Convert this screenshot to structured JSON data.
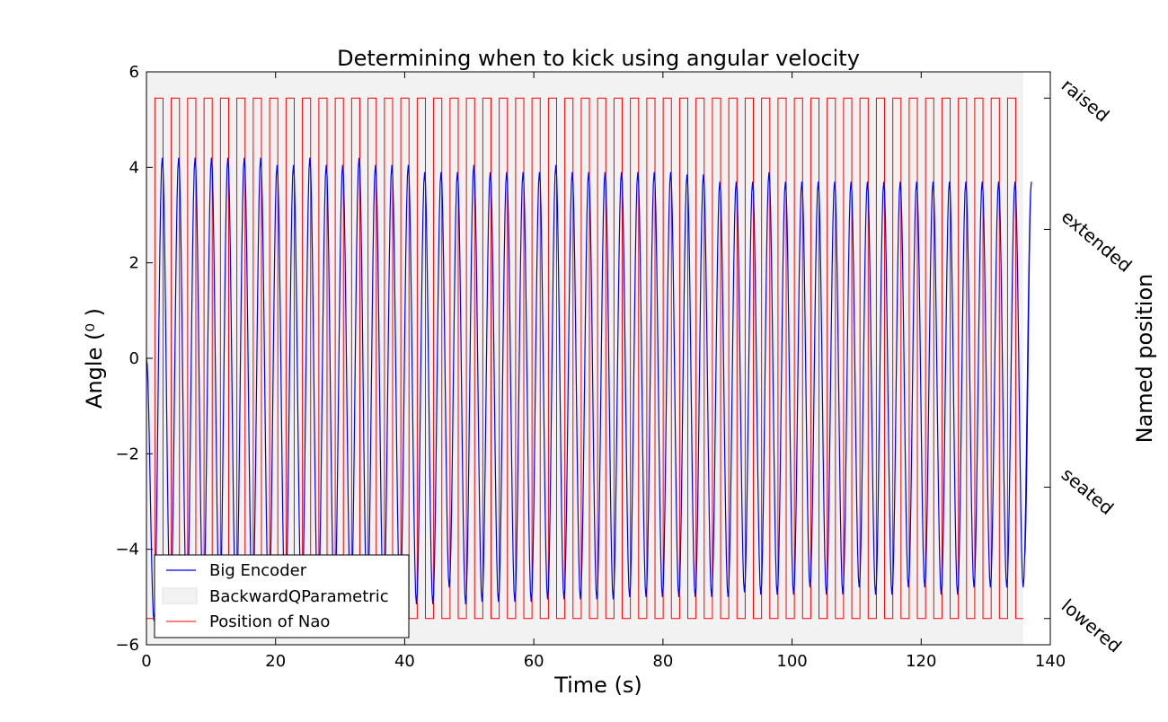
{
  "chart_data": {
    "type": "line",
    "title": "Determining when to kick using angular velocity",
    "xlabel": "Time (s)",
    "ylabel": "Angle (⁰ )",
    "ylabel_right": "Named position",
    "xlim": [
      0,
      140
    ],
    "ylim": [
      -6,
      6
    ],
    "x_ticks": [
      0,
      20,
      40,
      60,
      80,
      100,
      120,
      140
    ],
    "y_ticks": [
      -6,
      -4,
      -2,
      0,
      2,
      4,
      6
    ],
    "y_tick_labels": [
      "−6",
      "−4",
      "−2",
      "0",
      "2",
      "4",
      "6"
    ],
    "right_axis_labels": [
      {
        "label": "raised",
        "y": 5.45
      },
      {
        "label": "extended",
        "y": 2.7
      },
      {
        "label": "seated",
        "y": -2.7
      },
      {
        "label": "lowered",
        "y": -5.45
      }
    ],
    "grid": false,
    "legend_position": "lower-left",
    "shaded_region": {
      "name": "BackwardQParametric",
      "x": [
        0,
        135.8
      ],
      "color": "#f2f2f2"
    },
    "series": [
      {
        "name": "Big Encoder",
        "color": "#0000ff",
        "kind": "oscillation",
        "start": 0,
        "end": 136,
        "period": 2.54,
        "first_peak_t": 2.45,
        "peak_values": [
          4.2,
          4.2,
          4.2,
          4.2,
          4.2,
          4.2,
          4.2,
          4.05,
          4.05,
          4.2,
          4.05,
          4.05,
          4.2,
          4.05,
          4.05,
          4.05,
          3.9,
          3.9,
          3.9,
          4.05,
          3.9,
          3.9,
          3.9,
          3.9,
          4.05,
          3.9,
          3.9,
          3.9,
          3.9,
          3.9,
          3.9,
          3.9,
          3.85,
          3.85,
          3.7,
          3.7,
          3.7,
          3.9,
          3.7,
          3.7,
          3.7,
          3.7,
          3.7,
          3.7,
          3.7,
          3.7,
          3.7,
          3.7,
          3.7,
          3.7,
          3.7,
          3.7,
          3.7,
          3.7
        ],
        "trough_values": [
          -5.5,
          -5.3,
          -5.3,
          -5.3,
          -5.3,
          -5.3,
          -5.3,
          -5.3,
          -5.3,
          -5.3,
          -5.3,
          -5.3,
          -5.3,
          -5.3,
          -5.25,
          -5.15,
          -5.15,
          -5.15,
          -4.8,
          -5.15,
          -5.1,
          -5.1,
          -5.1,
          -5.1,
          -5.05,
          -5.05,
          -5.05,
          -5.05,
          -5.05,
          -5.0,
          -5.0,
          -5.0,
          -5.0,
          -5.0,
          -5.0,
          -5.0,
          -4.9,
          -4.95,
          -4.95,
          -4.95,
          -4.8,
          -4.95,
          -4.95,
          -4.8,
          -4.95,
          -4.95,
          -4.8,
          -4.8,
          -4.95,
          -4.95,
          -4.8,
          -4.8,
          -4.8,
          -4.8
        ]
      },
      {
        "name": "Position of Nao",
        "color": "#ff0000",
        "kind": "square-wave",
        "start": 0,
        "end": 135.8,
        "first_rise_t": 1.3,
        "period": 1.27,
        "high": 5.45,
        "low": -5.45
      }
    ]
  }
}
